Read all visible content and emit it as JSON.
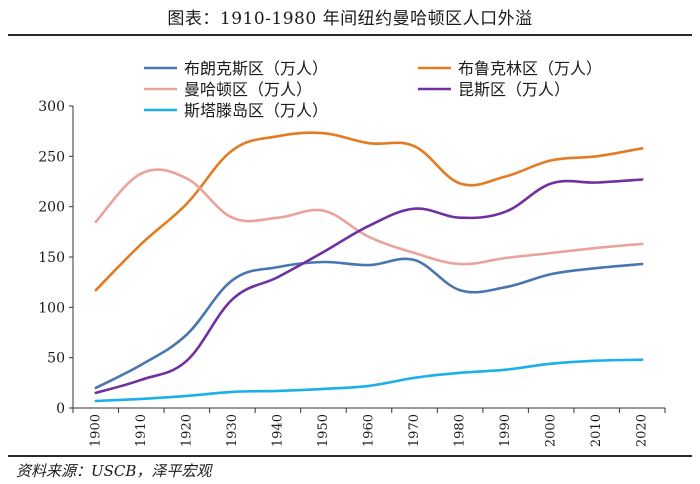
{
  "title": "图表：1910-1980 年间纽约曼哈顿区人口外溢",
  "source": "资料来源：USCB，泽平宏观",
  "chart_data": {
    "type": "line",
    "x": [
      "1900",
      "1910",
      "1920",
      "1930",
      "1940",
      "1950",
      "1960",
      "1970",
      "1980",
      "1990",
      "2000",
      "2010",
      "2020"
    ],
    "ylim": [
      0,
      300
    ],
    "yticks": [
      0,
      50,
      100,
      150,
      200,
      250,
      300
    ],
    "grid": false,
    "legend_position": "top",
    "series": [
      {
        "name": "布朗克斯区（万人）",
        "color": "#4a76b0",
        "values": [
          20,
          43,
          73,
          127,
          140,
          145,
          142,
          147,
          117,
          120,
          133,
          139,
          143
        ]
      },
      {
        "name": "布鲁克林区（万人）",
        "color": "#e37b22",
        "values": [
          117,
          163,
          203,
          256,
          270,
          273,
          263,
          260,
          223,
          230,
          246,
          250,
          258
        ]
      },
      {
        "name": "曼哈顿区（万人）",
        "color": "#eaa39c",
        "values": [
          185,
          233,
          228,
          189,
          189,
          196,
          170,
          154,
          143,
          149,
          154,
          159,
          163
        ]
      },
      {
        "name": "昆斯区（万人）",
        "color": "#7030a0",
        "values": [
          15,
          28,
          47,
          108,
          130,
          155,
          181,
          198,
          189,
          195,
          223,
          224,
          227
        ]
      },
      {
        "name": "斯塔滕岛区（万人）",
        "color": "#1ab0e8",
        "values": [
          7,
          9,
          12,
          16,
          17,
          19,
          22,
          30,
          35,
          38,
          44,
          47,
          48
        ]
      }
    ]
  }
}
